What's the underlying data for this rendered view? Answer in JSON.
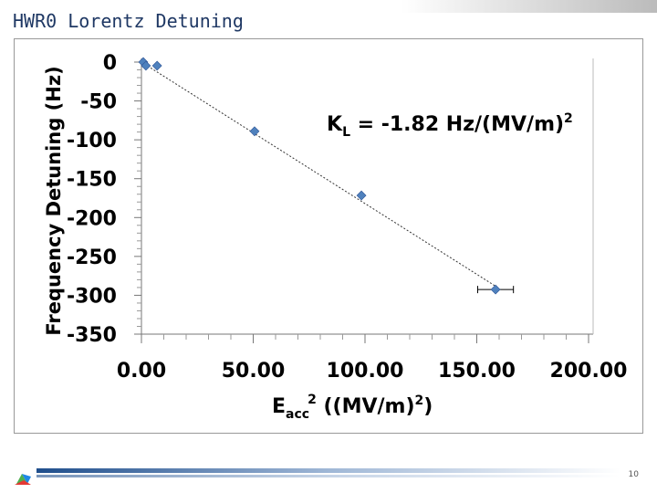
{
  "header": {
    "title": "HWR0 Lorentz Detuning"
  },
  "chart_data": {
    "type": "scatter",
    "x": [
      0.8,
      2,
      7,
      50.6,
      98.4,
      158.4
    ],
    "values": [
      0,
      -4.7,
      -4.7,
      -89,
      -171.6,
      -292.6
    ],
    "xerr": [
      null,
      null,
      null,
      null,
      null,
      8
    ],
    "color": "#4f81bd",
    "fit_slope": -1.82,
    "annotation": {
      "k": "K",
      "sub": "L",
      "main": " = -1.82 Hz/(MV/m)",
      "sup": "2"
    },
    "ylabel": "Frequency Detuning (Hz)",
    "xlabel": {
      "base": "E",
      "sub": "acc",
      "sup": "2",
      "rest": "  ((MV/m)",
      "sup2": "2",
      "end": ")"
    },
    "xlim": [
      0,
      200
    ],
    "xticks": [
      {
        "value": 0,
        "label": "0.00"
      },
      {
        "value": 50,
        "label": "50.00"
      },
      {
        "value": 100,
        "label": "100.00"
      },
      {
        "value": 150,
        "label": "150.00"
      },
      {
        "value": 200,
        "label": "200.00"
      }
    ],
    "ylim": [
      -350,
      0
    ],
    "yticks": [
      0,
      -50,
      -100,
      -150,
      -200,
      -250,
      -300,
      -350
    ],
    "minor_ticks": true
  },
  "footer": {
    "page": "10"
  }
}
